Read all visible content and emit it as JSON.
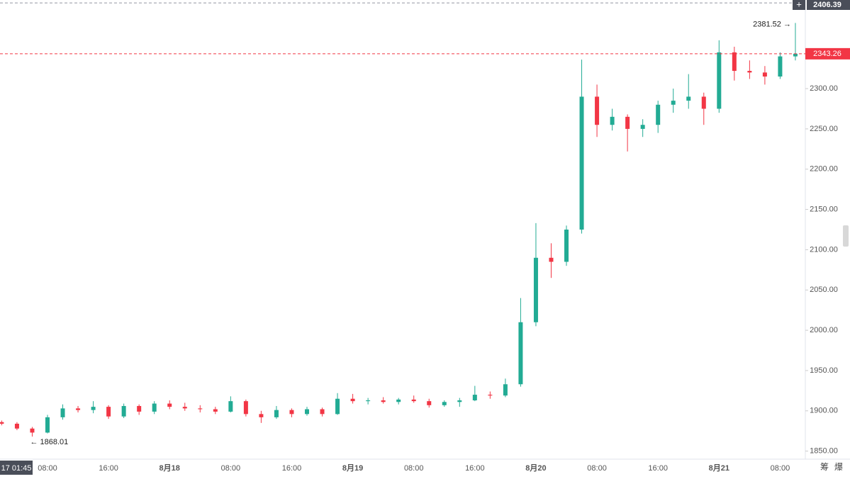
{
  "chart_data": {
    "type": "candlestick",
    "categories": [
      null,
      null,
      null,
      "08:00",
      null,
      null,
      null,
      "16:00",
      null,
      null,
      null,
      "8月18",
      null,
      null,
      null,
      "08:00",
      null,
      null,
      null,
      "16:00",
      null,
      null,
      null,
      "8月19",
      null,
      null,
      null,
      "08:00",
      null,
      null,
      null,
      "16:00",
      null,
      null,
      null,
      "8月20",
      null,
      null,
      null,
      "08:00",
      null,
      null,
      null,
      "16:00",
      null,
      null,
      null,
      "8月21",
      null,
      null,
      null,
      "08:00",
      null
    ],
    "open": [
      1886,
      1884,
      1878,
      1873,
      1892,
      1903,
      1901,
      1905,
      1893,
      1906,
      1899,
      1909,
      1905,
      1903,
      1902,
      1899,
      1912,
      1896,
      1892,
      1901,
      1896,
      1902,
      1896,
      1915,
      1912,
      1913,
      1911,
      1914,
      1912,
      1907,
      1911,
      1913,
      1920,
      1919,
      1933,
      2010,
      2090,
      2085,
      2125,
      2290,
      2255,
      2265,
      2250,
      2255,
      2280,
      2285,
      2290,
      2275,
      2345,
      2322,
      2320,
      2315,
      2340
    ],
    "high": [
      1888,
      1886,
      1880,
      1895,
      1908,
      1906,
      1912,
      1907,
      1909,
      1908,
      1912,
      1913,
      1910,
      1907,
      1905,
      1918,
      1914,
      1900,
      1906,
      1903,
      1905,
      1904,
      1922,
      1921,
      1916,
      1917,
      1916,
      1919,
      1915,
      1913,
      1916,
      1931,
      1924,
      1940,
      2040,
      2133,
      2108,
      2130,
      2336,
      2305,
      2275,
      2268,
      2262,
      2285,
      2300,
      2318,
      2295,
      2360,
      2352,
      2335,
      2328,
      2345,
      2381.52
    ],
    "low": [
      1882,
      1876,
      1868.01,
      1872,
      1889,
      1898,
      1897,
      1890,
      1891,
      1895,
      1896,
      1902,
      1900,
      1898,
      1896,
      1898,
      1893,
      1885,
      1890,
      1892,
      1894,
      1893,
      1895,
      1909,
      1908,
      1909,
      1908,
      1910,
      1904,
      1905,
      1905,
      1912,
      1915,
      1917,
      1930,
      2005,
      2065,
      2080,
      2120,
      2240,
      2248,
      2222,
      2240,
      2245,
      2270,
      2275,
      2255,
      2270,
      2310,
      2312,
      2305,
      2312,
      2335
    ],
    "close": [
      1884,
      1878,
      1873,
      1892,
      1903,
      1901,
      1905,
      1893,
      1906,
      1899,
      1909,
      1905,
      1903,
      1902,
      1899,
      1912,
      1896,
      1892,
      1901,
      1896,
      1902,
      1896,
      1915,
      1912,
      1913,
      1911,
      1914,
      1912,
      1907,
      1911,
      1913,
      1920,
      1919,
      1933,
      2010,
      2090,
      2085,
      2125,
      2290,
      2255,
      2265,
      2250,
      2255,
      2280,
      2285,
      2290,
      2275,
      2345,
      2322,
      2320,
      2315,
      2340,
      2343.26
    ],
    "up_color": "#22ab94",
    "down_color": "#f23645",
    "ylim": [
      1840,
      2410
    ],
    "yticks": [
      {
        "value": 1850,
        "label": "1850.00"
      },
      {
        "value": 1900,
        "label": "1900.00"
      },
      {
        "value": 1950,
        "label": "1950.00"
      },
      {
        "value": 2000,
        "label": "2000.00"
      },
      {
        "value": 2050,
        "label": "2050.00"
      },
      {
        "value": 2100,
        "label": "2100.00"
      },
      {
        "value": 2150,
        "label": "2150.00"
      },
      {
        "value": 2200,
        "label": "2200.00"
      },
      {
        "value": 2250,
        "label": "2250.00"
      },
      {
        "value": 2300,
        "label": "2300.00"
      }
    ],
    "crosshair": {
      "price": 2406.39,
      "time": "17 01:45"
    },
    "annotations": {
      "high": "2381.52 →",
      "low": "← 1868.01"
    }
  },
  "toolbar": {
    "buttons": [
      "筹",
      "爆"
    ]
  }
}
